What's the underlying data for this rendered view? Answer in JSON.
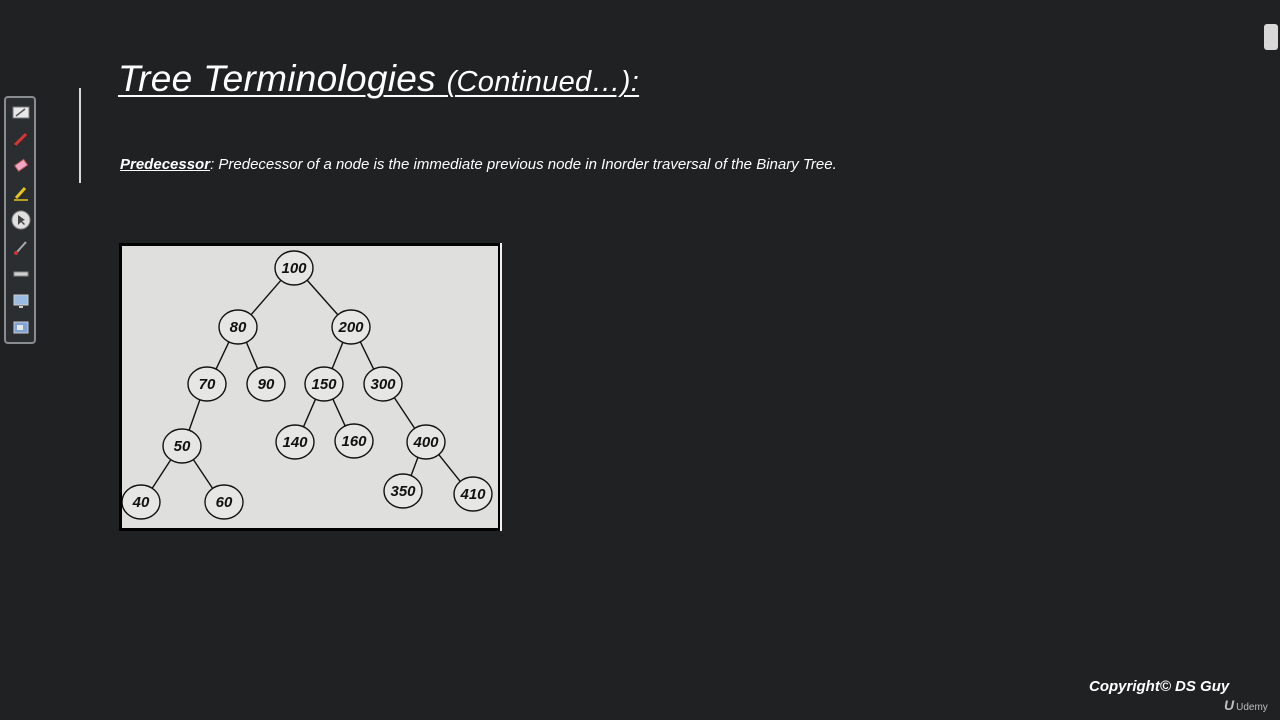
{
  "slide": {
    "title_main": "Tree Terminologies ",
    "title_paren": "(Continued…):",
    "definition": {
      "term": "Predecessor",
      "text": ": Predecessor of a node is the immediate previous node in Inorder traversal of the Binary Tree."
    }
  },
  "tree": {
    "nodes": [
      {
        "id": "n100",
        "label": "100"
      },
      {
        "id": "n80",
        "label": "80"
      },
      {
        "id": "n200",
        "label": "200"
      },
      {
        "id": "n70",
        "label": "70"
      },
      {
        "id": "n90",
        "label": "90"
      },
      {
        "id": "n150",
        "label": "150"
      },
      {
        "id": "n300",
        "label": "300"
      },
      {
        "id": "n50",
        "label": "50"
      },
      {
        "id": "n140",
        "label": "140"
      },
      {
        "id": "n160",
        "label": "160"
      },
      {
        "id": "n400",
        "label": "400"
      },
      {
        "id": "n40",
        "label": "40"
      },
      {
        "id": "n60",
        "label": "60"
      },
      {
        "id": "n350",
        "label": "350"
      },
      {
        "id": "n410",
        "label": "410"
      }
    ],
    "edges": [
      [
        "n100",
        "n80"
      ],
      [
        "n100",
        "n200"
      ],
      [
        "n80",
        "n70"
      ],
      [
        "n80",
        "n90"
      ],
      [
        "n200",
        "n150"
      ],
      [
        "n200",
        "n300"
      ],
      [
        "n70",
        "n50"
      ],
      [
        "n150",
        "n140"
      ],
      [
        "n150",
        "n160"
      ],
      [
        "n300",
        "n400"
      ],
      [
        "n50",
        "n40"
      ],
      [
        "n50",
        "n60"
      ],
      [
        "n400",
        "n350"
      ],
      [
        "n400",
        "n410"
      ]
    ]
  },
  "toolbar": {
    "tools": [
      {
        "icon": "whiteboard-icon"
      },
      {
        "icon": "pen-icon"
      },
      {
        "icon": "eraser-icon"
      },
      {
        "icon": "highlighter-icon"
      },
      {
        "icon": "pointer-icon"
      },
      {
        "icon": "brush-icon"
      },
      {
        "icon": "line-icon"
      },
      {
        "icon": "screen-icon"
      },
      {
        "icon": "screen-capture-icon"
      }
    ]
  },
  "footer": {
    "copyright": "Copyright© DS Guy",
    "brand_mark": "U",
    "brand_name": "Udemy"
  },
  "colors": {
    "background": "#1f2122",
    "text": "#ffffff",
    "tree_background": "#dfe0dd"
  }
}
